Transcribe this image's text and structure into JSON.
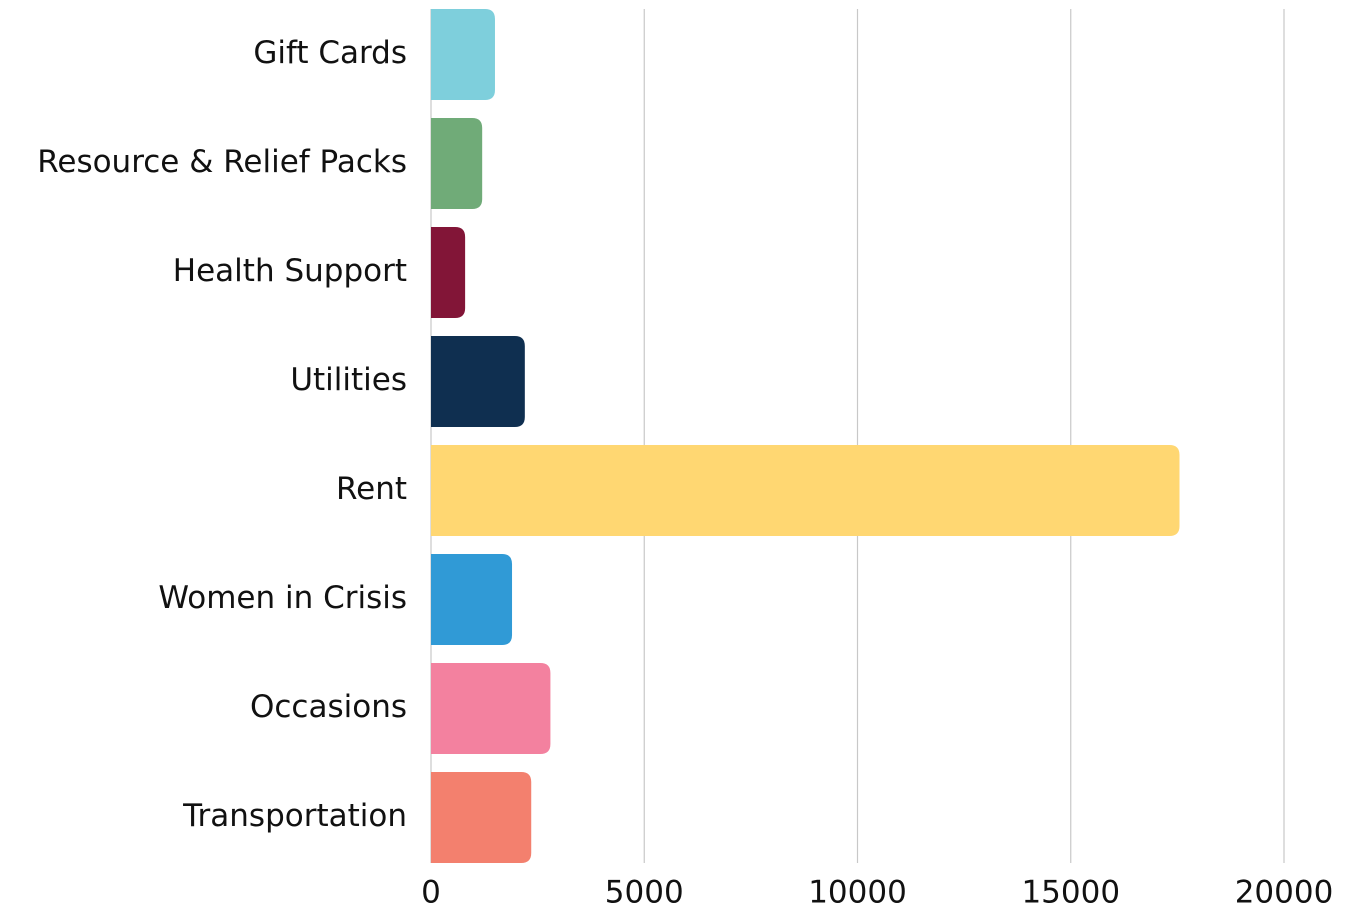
{
  "chart_data": {
    "type": "bar",
    "orientation": "horizontal",
    "categories": [
      "Gift Cards",
      "Resource & Relief Packs",
      "Health Support",
      "Utilities",
      "Rent",
      "Women in Crisis",
      "Occasions",
      "Transportation"
    ],
    "values": [
      1500,
      1200,
      800,
      2200,
      17550,
      1900,
      2800,
      2350
    ],
    "colors": [
      "#7ecfdc",
      "#70ab78",
      "#821537",
      "#0f2f50",
      "#ffd772",
      "#309ad6",
      "#f3819f",
      "#f3806e"
    ],
    "xlim": [
      0,
      20000
    ],
    "xticks": [
      0,
      5000,
      10000,
      15000,
      20000
    ],
    "grid": true
  }
}
